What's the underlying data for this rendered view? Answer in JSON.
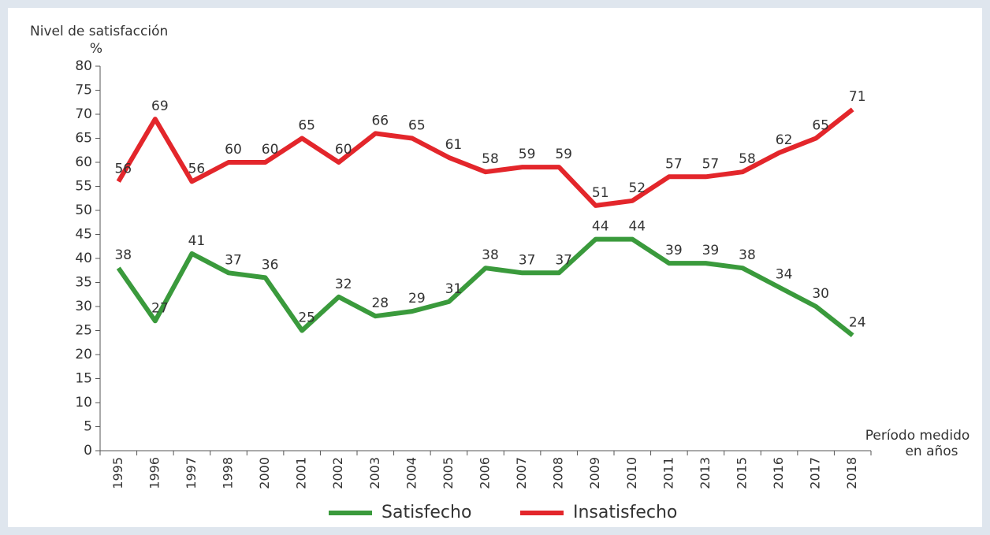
{
  "chart_data": {
    "type": "line",
    "ylabel": "Nivel de satisfacción",
    "yunit": "%",
    "xlabel": [
      "Período medido",
      "en años"
    ],
    "categories": [
      "1995",
      "1996",
      "1997",
      "1998",
      "2000",
      "2001",
      "2002",
      "2003",
      "2004",
      "2005",
      "2006",
      "2007",
      "2008",
      "2009",
      "2010",
      "2011",
      "2013",
      "2015",
      "2016",
      "2017",
      "2018"
    ],
    "series": [
      {
        "name": "Satisfecho",
        "color": "#3a9a3c",
        "values": [
          38,
          27,
          41,
          37,
          36,
          25,
          32,
          28,
          29,
          31,
          38,
          37,
          37,
          44,
          44,
          39,
          39,
          38,
          34,
          30,
          24
        ]
      },
      {
        "name": "Insatisfecho",
        "color": "#e3262b",
        "values": [
          56,
          69,
          56,
          60,
          60,
          65,
          60,
          66,
          65,
          61,
          58,
          59,
          59,
          51,
          52,
          57,
          57,
          58,
          62,
          65,
          71
        ]
      }
    ],
    "ylim": [
      0,
      80
    ],
    "yticks": [
      0,
      5,
      10,
      15,
      20,
      25,
      30,
      35,
      40,
      45,
      50,
      55,
      60,
      65,
      70,
      75,
      80
    ],
    "grid": false,
    "legend": "bottom"
  }
}
